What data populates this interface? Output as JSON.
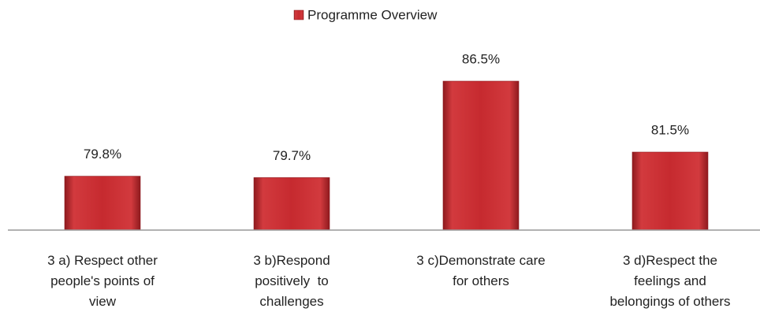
{
  "chart_data": {
    "type": "bar",
    "categories": [
      "3 a) Respect other\npeople's points of\nview",
      "3 b)Respond\npositively  to\nchallenges",
      "3 c)Demonstrate care\nfor others",
      "3 d)Respect the\nfeelings and\nbelongings of others"
    ],
    "series": [
      {
        "name": "Programme Overview",
        "color": "#c62a2f",
        "values": [
          79.8,
          79.7,
          86.5,
          81.5
        ],
        "value_labels": [
          "79.8%",
          "79.7%",
          "86.5%",
          "81.5%"
        ]
      }
    ],
    "ylim": [
      76,
      90
    ],
    "legend": "top"
  }
}
